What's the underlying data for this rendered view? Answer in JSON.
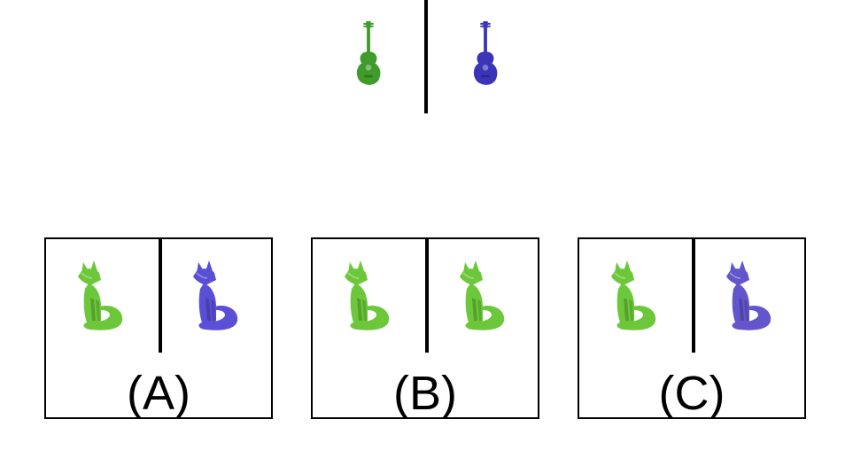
{
  "question": {
    "left_icon": "guitar-icon",
    "left_color": "#3f9b2c",
    "right_icon": "guitar-icon",
    "right_color": "#3a35b8"
  },
  "options": [
    {
      "label": "(A)",
      "left_icon": "fox-icon",
      "left_color": "#6cc83a",
      "right_icon": "fox-icon",
      "right_color": "#5a4fd6"
    },
    {
      "label": "(B)",
      "left_icon": "fox-icon",
      "left_color": "#6cc83a",
      "right_icon": "fox-icon",
      "right_color": "#6cc83a"
    },
    {
      "label": "(C)",
      "left_icon": "fox-icon",
      "left_color": "#6cc83a",
      "right_icon": "fox-icon",
      "right_color": "#6356cc"
    }
  ]
}
